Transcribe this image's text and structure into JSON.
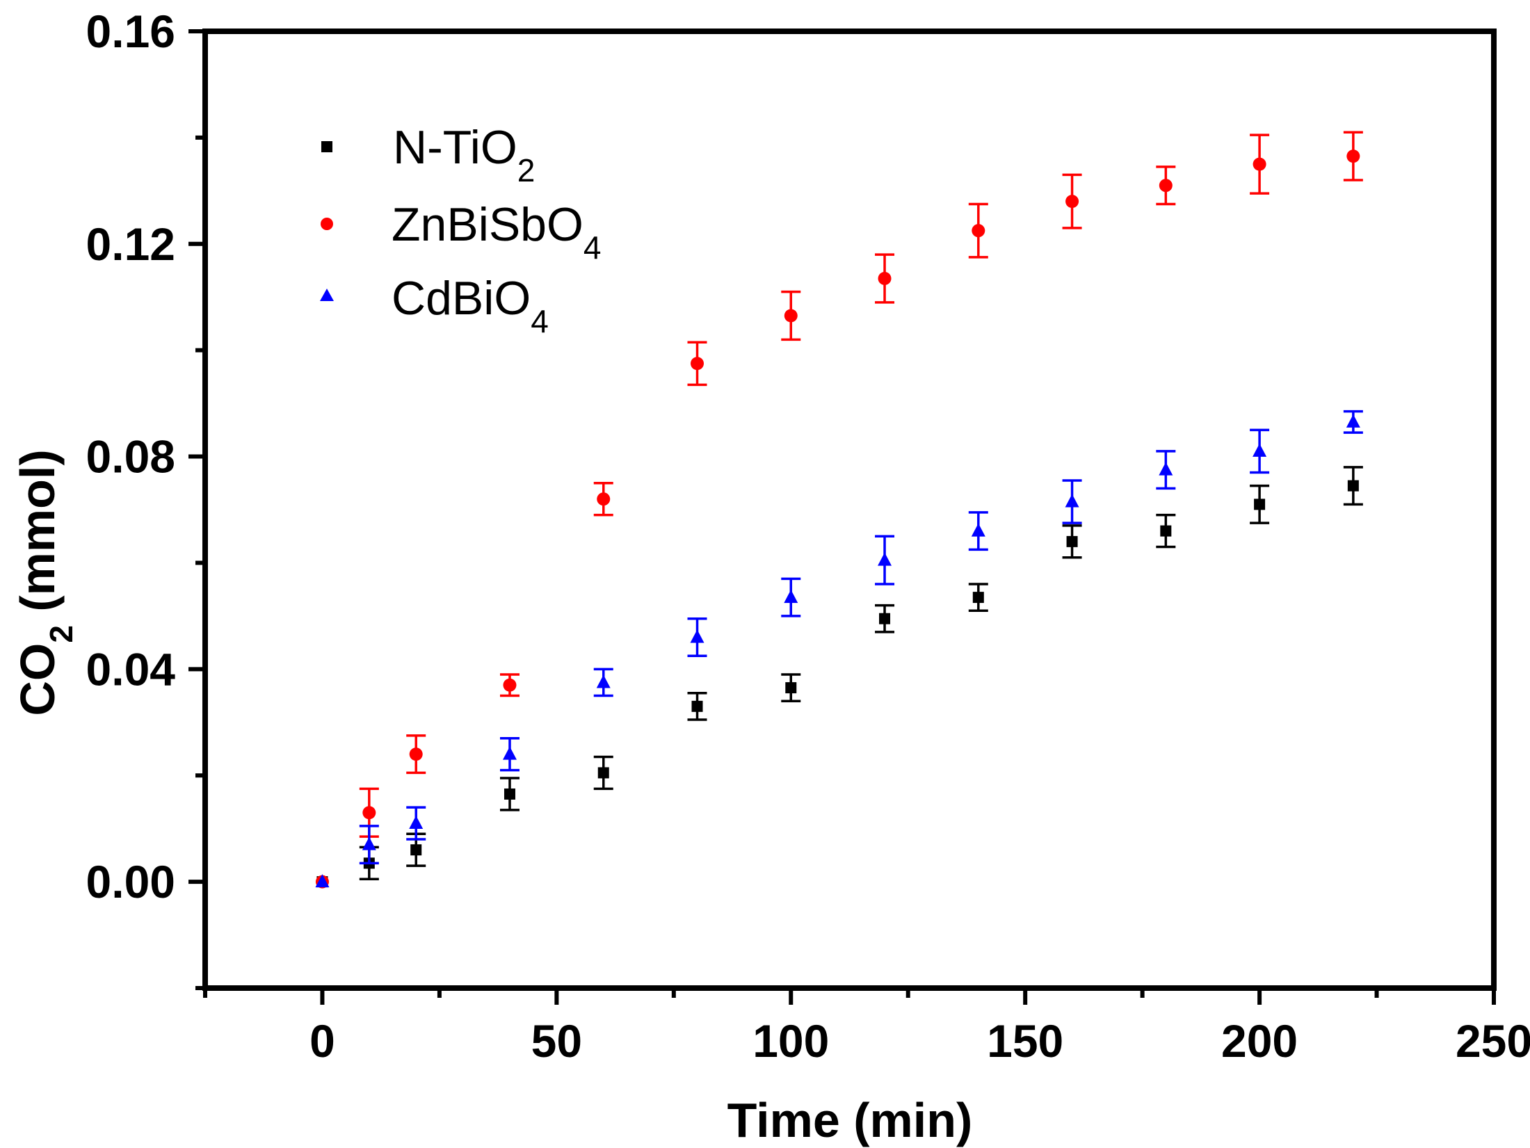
{
  "chart_data": {
    "type": "scatter",
    "xlabel": "Time (min)",
    "ylabel": {
      "pre": "CO",
      "sub": "2",
      "post": " (mmol)"
    },
    "xlim": [
      -25,
      250
    ],
    "ylim": [
      -0.02,
      0.16
    ],
    "xticks": [
      0,
      50,
      100,
      150,
      200,
      250
    ],
    "xtick_labels": [
      "0",
      "50",
      "100",
      "150",
      "200",
      "250"
    ],
    "yticks": [
      0.0,
      0.04,
      0.08,
      0.12,
      0.16
    ],
    "ytick_labels": [
      "0.00",
      "0.04",
      "0.08",
      "0.12",
      "0.16"
    ],
    "grid": false,
    "legend_position": "top-left",
    "series": [
      {
        "name": "N-TiO2",
        "label": {
          "main": "N-TiO",
          "sub": "2"
        },
        "color": "#000000",
        "marker": "square",
        "x": [
          0,
          10,
          20,
          40,
          60,
          80,
          100,
          120,
          140,
          160,
          180,
          200,
          220
        ],
        "y": [
          0.0,
          0.0035,
          0.006,
          0.0165,
          0.0205,
          0.033,
          0.0365,
          0.0495,
          0.0535,
          0.064,
          0.066,
          0.071,
          0.0745
        ],
        "err": [
          0,
          0.003,
          0.003,
          0.003,
          0.003,
          0.0025,
          0.0025,
          0.0025,
          0.0025,
          0.003,
          0.003,
          0.0035,
          0.0035
        ]
      },
      {
        "name": "ZnBiSbO4",
        "label": {
          "main": "ZnBiSbO",
          "sub": "4"
        },
        "color": "#ff0000",
        "marker": "circle",
        "x": [
          0,
          10,
          20,
          40,
          60,
          80,
          100,
          120,
          140,
          160,
          180,
          200,
          220
        ],
        "y": [
          0.0,
          0.013,
          0.024,
          0.037,
          0.072,
          0.0975,
          0.1065,
          0.1135,
          0.1225,
          0.128,
          0.131,
          0.135,
          0.1365
        ],
        "err": [
          0,
          0.0045,
          0.0035,
          0.002,
          0.003,
          0.004,
          0.0045,
          0.0045,
          0.005,
          0.005,
          0.0035,
          0.0055,
          0.0045
        ]
      },
      {
        "name": "CdBiO4",
        "label": {
          "main": "CdBiO",
          "sub": "4"
        },
        "color": "#0000ff",
        "marker": "triangle",
        "x": [
          0,
          10,
          20,
          40,
          60,
          80,
          100,
          120,
          140,
          160,
          180,
          200,
          220
        ],
        "y": [
          0.0,
          0.007,
          0.011,
          0.024,
          0.0375,
          0.046,
          0.0535,
          0.0605,
          0.066,
          0.0715,
          0.0775,
          0.081,
          0.0865
        ],
        "err": [
          0,
          0.0035,
          0.003,
          0.003,
          0.0025,
          0.0035,
          0.0035,
          0.0045,
          0.0035,
          0.004,
          0.0035,
          0.004,
          0.002
        ]
      }
    ]
  }
}
